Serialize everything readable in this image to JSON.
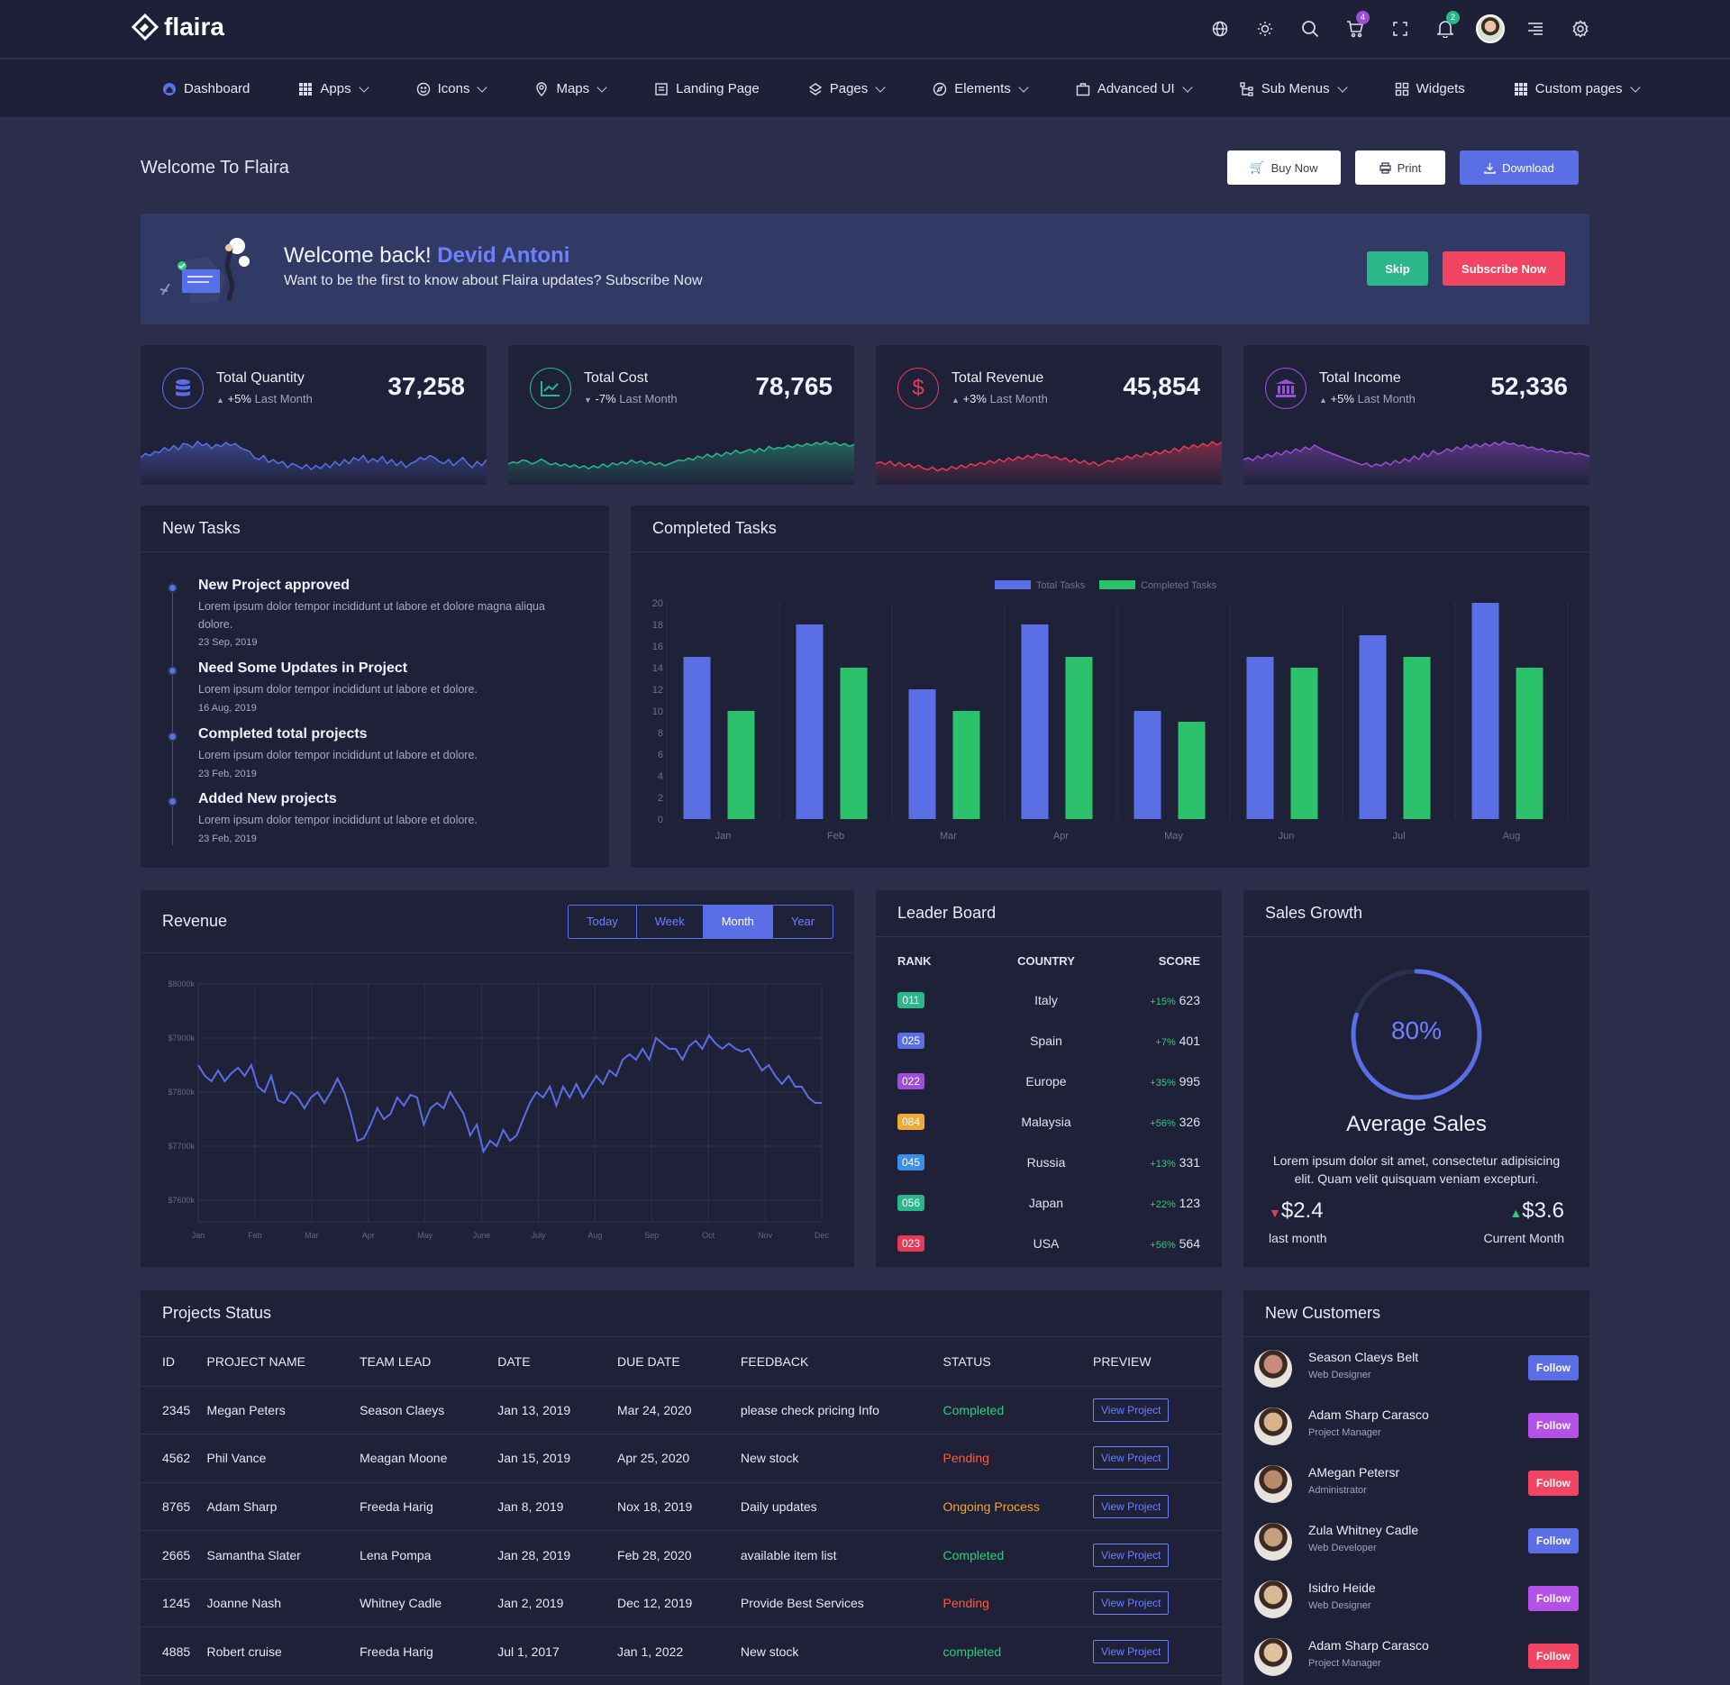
{
  "brand": "flaira",
  "top_badges": {
    "cart": "4",
    "notifications": "2"
  },
  "nav": [
    "Dashboard",
    "Apps",
    "Icons",
    "Maps",
    "Landing Page",
    "Pages",
    "Elements",
    "Advanced UI",
    "Sub Menus",
    "Widgets",
    "Custom pages"
  ],
  "page_title": "Welcome To Flaira",
  "actions": {
    "buy": "Buy Now",
    "print": "Print",
    "download": "Download"
  },
  "welcome": {
    "greeting": "Welcome back!",
    "name": "Devid Antoni",
    "message": "Want to be the first to know about Flaira updates? Subscribe Now",
    "skip": "Skip",
    "subscribe": "Subscribe Now"
  },
  "stats": [
    {
      "label": "Total Quantity",
      "change": "+5%",
      "period": "Last Month",
      "value": "37,258",
      "color": "#5a6fe6"
    },
    {
      "label": "Total Cost",
      "change": "-7%",
      "period": "Last Month",
      "value": "78,765",
      "color": "#2bb78a"
    },
    {
      "label": "Total Revenue",
      "change": "+3%",
      "period": "Last Month",
      "value": "45,854",
      "color": "#e53b56"
    },
    {
      "label": "Total Income",
      "change": "+5%",
      "period": "Last Month",
      "value": "52,336",
      "color": "#9b4fd6"
    }
  ],
  "new_tasks": {
    "title": "New Tasks",
    "items": [
      {
        "title": "New Project approved",
        "desc": "Lorem ipsum dolor tempor incididunt ut labore et dolore magna aliqua dolore.",
        "date": "23 Sep, 2019"
      },
      {
        "title": "Need Some Updates in Project",
        "desc": "Lorem ipsum dolor tempor incididunt ut labore et dolore.",
        "date": "16 Aug, 2019"
      },
      {
        "title": "Completed total projects",
        "desc": "Lorem ipsum dolor tempor incididunt ut labore et dolore.",
        "date": "23 Feb, 2019"
      },
      {
        "title": "Added New projects",
        "desc": "Lorem ipsum dolor tempor incididunt ut labore et dolore.",
        "date": "23 Feb, 2019"
      }
    ]
  },
  "completed_tasks_title": "Completed Tasks",
  "revenue": {
    "title": "Revenue",
    "tabs": [
      "Today",
      "Week",
      "Month",
      "Year"
    ],
    "active": "Month"
  },
  "leaderboard": {
    "title": "Leader Board",
    "headers": [
      "RANK",
      "COUNTRY",
      "SCORE"
    ],
    "rows": [
      {
        "rank": "011",
        "country": "Italy",
        "change": "+15%",
        "score": "623",
        "color": "#2bb78a"
      },
      {
        "rank": "025",
        "country": "Spain",
        "change": "+7%",
        "score": "401",
        "color": "#5a6fe6"
      },
      {
        "rank": "022",
        "country": "Europe",
        "change": "+35%",
        "score": "995",
        "color": "#9b4fd6"
      },
      {
        "rank": "084",
        "country": "Malaysia",
        "change": "+56%",
        "score": "326",
        "color": "#f0a93b"
      },
      {
        "rank": "045",
        "country": "Russia",
        "change": "+13%",
        "score": "331",
        "color": "#3b8ee6"
      },
      {
        "rank": "056",
        "country": "Japan",
        "change": "+22%",
        "score": "123",
        "color": "#2bb78a"
      },
      {
        "rank": "023",
        "country": "USA",
        "change": "+56%",
        "score": "564",
        "color": "#e53b56"
      }
    ]
  },
  "sales_growth": {
    "title": "Sales Growth",
    "percent": "80%",
    "percent_value": 0.8,
    "heading": "Average Sales",
    "desc": "Lorem ipsum dolor sit amet, consectetur adipisicing elit. Quam velit quisquam veniam excepturi.",
    "last_value": "$2.4",
    "last_label": "last month",
    "current_value": "$3.6",
    "current_label": "Current Month"
  },
  "projects": {
    "title": "Projects Status",
    "headers": [
      "ID",
      "PROJECT NAME",
      "TEAM LEAD",
      "DATE",
      "DUE DATE",
      "FEEDBACK",
      "STATUS",
      "PREVIEW"
    ],
    "rows": [
      {
        "id": "2345",
        "name": "Megan Peters",
        "lead": "Season Claeys",
        "date": "Jan 13, 2019",
        "due": "Mar 24, 2020",
        "feedback": "please check pricing Info",
        "status": "Completed",
        "status_color": "#2bcf7b",
        "preview": "View Project"
      },
      {
        "id": "4562",
        "name": "Phil Vance",
        "lead": "Meagan Moone",
        "date": "Jan 15, 2019",
        "due": "Apr 25, 2020",
        "feedback": "New stock",
        "status": "Pending",
        "status_color": "#ff5a3b",
        "preview": "View Project"
      },
      {
        "id": "8765",
        "name": "Adam Sharp",
        "lead": "Freeda Harig",
        "date": "Jan 8, 2019",
        "due": "Nox 18, 2019",
        "feedback": "Daily updates",
        "status": "Ongoing Process",
        "status_color": "#f5a623",
        "preview": "View Project"
      },
      {
        "id": "2665",
        "name": "Samantha Slater",
        "lead": "Lena Pompa",
        "date": "Jan 28, 2019",
        "due": "Feb 28, 2020",
        "feedback": "available item list",
        "status": "Completed",
        "status_color": "#2bcf7b",
        "preview": "View Project"
      },
      {
        "id": "1245",
        "name": "Joanne Nash",
        "lead": "Whitney Cadle",
        "date": "Jan 2, 2019",
        "due": "Dec 12, 2019",
        "feedback": "Provide Best Services",
        "status": "Pending",
        "status_color": "#ff5a3b",
        "preview": "View Project"
      },
      {
        "id": "4885",
        "name": "Robert cruise",
        "lead": "Freeda Harig",
        "date": "Jul 1, 2017",
        "due": "Jan 1, 2022",
        "feedback": "New stock",
        "status": "completed",
        "status_color": "#2bcf7b",
        "preview": "View Project"
      }
    ]
  },
  "customers": {
    "title": "New Customers",
    "items": [
      {
        "name": "Season Claeys Belt",
        "role": "Web Designer",
        "action": "Follow",
        "color": "#5a6fe6"
      },
      {
        "name": "Adam Sharp Carasco",
        "role": "Project Manager",
        "action": "Follow",
        "color": "#b452e8"
      },
      {
        "name": "AMegan Petersr",
        "role": "Administrator",
        "action": "Follow",
        "color": "#f24463"
      },
      {
        "name": "Zula Whitney Cadle",
        "role": "Web Developer",
        "action": "Follow",
        "color": "#5a6fe6"
      },
      {
        "name": "Isidro Heide",
        "role": "Web Designer",
        "action": "Follow",
        "color": "#b452e8"
      },
      {
        "name": "Adam Sharp Carasco",
        "role": "Project Manager",
        "action": "Follow",
        "color": "#f24463"
      }
    ]
  },
  "chart_data": [
    {
      "type": "bar",
      "title": "Completed Tasks",
      "categories": [
        "Jan",
        "Feb",
        "Mar",
        "Apr",
        "May",
        "Jun",
        "Jul",
        "Aug"
      ],
      "series": [
        {
          "name": "Total Tasks",
          "color": "#5a6fe6",
          "values": [
            15,
            18,
            12,
            18,
            10,
            15,
            17,
            20
          ]
        },
        {
          "name": "Completed Tasks",
          "color": "#2bc26b",
          "values": [
            10,
            14,
            10,
            15,
            9,
            14,
            15,
            14
          ]
        }
      ],
      "ylim": [
        0,
        20
      ],
      "yticks": [
        "20",
        "18",
        "16",
        "14",
        "12",
        "10",
        "8",
        "6",
        "4",
        "2",
        "0"
      ],
      "legend": "top-center",
      "grid": true
    },
    {
      "type": "line",
      "title": "Revenue",
      "xticks": [
        "Jan",
        "Feb",
        "Mar",
        "Apr",
        "May",
        "June",
        "July",
        "Aug",
        "Sep",
        "Oct",
        "Nov",
        "Dec"
      ],
      "yticks": [
        "$8000k",
        "$7900k",
        "$7800k",
        "$7700k",
        "$7600k"
      ],
      "ylim": [
        7560,
        8000
      ],
      "grid": true,
      "color": "#5a6fe6",
      "values": [
        7850,
        7830,
        7820,
        7840,
        7820,
        7835,
        7845,
        7830,
        7850,
        7810,
        7800,
        7830,
        7785,
        7780,
        7800,
        7790,
        7770,
        7790,
        7800,
        7780,
        7800,
        7825,
        7800,
        7760,
        7710,
        7715,
        7740,
        7770,
        7750,
        7760,
        7790,
        7775,
        7795,
        7790,
        7740,
        7770,
        7780,
        7770,
        7800,
        7780,
        7760,
        7720,
        7740,
        7690,
        7710,
        7700,
        7730,
        7710,
        7720,
        7750,
        7780,
        7800,
        7790,
        7810,
        7775,
        7810,
        7790,
        7815,
        7790,
        7810,
        7830,
        7815,
        7840,
        7830,
        7860,
        7870,
        7860,
        7880,
        7860,
        7900,
        7890,
        7880,
        7880,
        7860,
        7885,
        7895,
        7880,
        7905,
        7890,
        7880,
        7890,
        7880,
        7875,
        7880,
        7860,
        7840,
        7850,
        7830,
        7815,
        7830,
        7810,
        7810,
        7790,
        7780,
        7780
      ]
    },
    {
      "type": "area",
      "title": "Total Quantity",
      "values": [
        20,
        24,
        22,
        26,
        25,
        30,
        27,
        32,
        28,
        34,
        33,
        30,
        36,
        32,
        34,
        29,
        33,
        31,
        35,
        32,
        34,
        30,
        28,
        26,
        20,
        18,
        22,
        15,
        18,
        14,
        16,
        10,
        14,
        12,
        9,
        13,
        8,
        12,
        9,
        14,
        10,
        16,
        12,
        18,
        14,
        20,
        17,
        22,
        15,
        19,
        16,
        21,
        14,
        18,
        12,
        16,
        10,
        14,
        16,
        20,
        18,
        22,
        20,
        16,
        14,
        18,
        12,
        16,
        20,
        14,
        10,
        16,
        12,
        18
      ]
    },
    {
      "type": "area",
      "title": "Total Cost",
      "values": [
        14,
        16,
        15,
        18,
        17,
        14,
        16,
        19,
        16,
        13,
        15,
        12,
        14,
        11,
        13,
        10,
        12,
        9,
        12,
        10,
        14,
        11,
        15,
        13,
        16,
        14,
        18,
        15,
        17,
        14,
        16,
        13,
        15,
        12,
        14,
        16,
        18,
        17,
        20,
        18,
        22,
        20,
        24,
        21,
        25,
        22,
        26,
        24,
        28,
        25,
        27,
        29,
        26,
        30,
        27,
        32,
        29,
        31,
        30,
        33,
        31,
        34,
        32,
        35,
        33,
        36,
        34,
        37,
        34,
        36,
        33,
        35,
        32,
        34
      ]
    },
    {
      "type": "area",
      "title": "Total Revenue",
      "values": [
        22,
        24,
        20,
        25,
        18,
        23,
        17,
        21,
        15,
        19,
        14,
        12,
        16,
        10,
        14,
        11,
        17,
        13,
        19,
        15,
        21,
        18,
        23,
        20,
        26,
        22,
        28,
        24,
        30,
        26,
        32,
        28,
        34,
        30,
        36,
        33,
        35,
        30,
        32,
        27,
        30,
        24,
        28,
        22,
        26,
        20,
        24,
        18,
        22,
        26,
        24,
        30,
        27,
        33,
        29,
        35,
        31,
        38,
        34,
        40,
        36,
        42,
        38,
        45,
        40,
        48,
        44,
        50,
        46,
        52,
        48,
        55,
        50,
        54
      ]
    },
    {
      "type": "area",
      "title": "Total Income",
      "values": [
        20,
        22,
        19,
        24,
        21,
        26,
        23,
        28,
        25,
        30,
        27,
        32,
        29,
        34,
        31,
        36,
        33,
        30,
        28,
        26,
        24,
        22,
        20,
        18,
        16,
        14,
        16,
        12,
        15,
        13,
        17,
        14,
        19,
        16,
        21,
        18,
        24,
        20,
        27,
        23,
        30,
        26,
        28,
        32,
        29,
        34,
        31,
        36,
        33,
        37,
        34,
        38,
        35,
        39,
        36,
        40,
        37,
        38,
        35,
        36,
        33,
        34,
        31,
        32,
        29,
        30,
        28,
        29,
        27,
        28,
        26,
        27,
        25,
        24
      ]
    }
  ]
}
